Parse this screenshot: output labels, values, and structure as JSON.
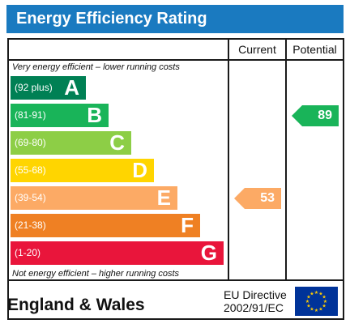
{
  "header": {
    "title": "Energy Efficiency Rating"
  },
  "columns": {
    "current": "Current",
    "potential": "Potential"
  },
  "notes": {
    "top": "Very energy efficient – lower running costs",
    "bottom": "Not energy efficient – higher running costs"
  },
  "footer": {
    "region": "England & Wales",
    "directive_line1": "EU Directive",
    "directive_line2": "2002/91/EC"
  },
  "chart_data": {
    "type": "bar",
    "title": "Energy Efficiency Rating",
    "bands": [
      {
        "letter": "A",
        "range": "(92 plus)",
        "color": "#008054"
      },
      {
        "letter": "B",
        "range": "(81-91)",
        "color": "#19b459"
      },
      {
        "letter": "C",
        "range": "(69-80)",
        "color": "#8dce46"
      },
      {
        "letter": "D",
        "range": "(55-68)",
        "color": "#ffd500"
      },
      {
        "letter": "E",
        "range": "(39-54)",
        "color": "#fcaa65"
      },
      {
        "letter": "F",
        "range": "(21-38)",
        "color": "#ef8023"
      },
      {
        "letter": "G",
        "range": "(1-20)",
        "color": "#e9153b"
      }
    ],
    "current": {
      "value": 53,
      "band": "E",
      "color": "#fcaa65"
    },
    "potential": {
      "value": 89,
      "band": "B",
      "color": "#19b459"
    }
  }
}
